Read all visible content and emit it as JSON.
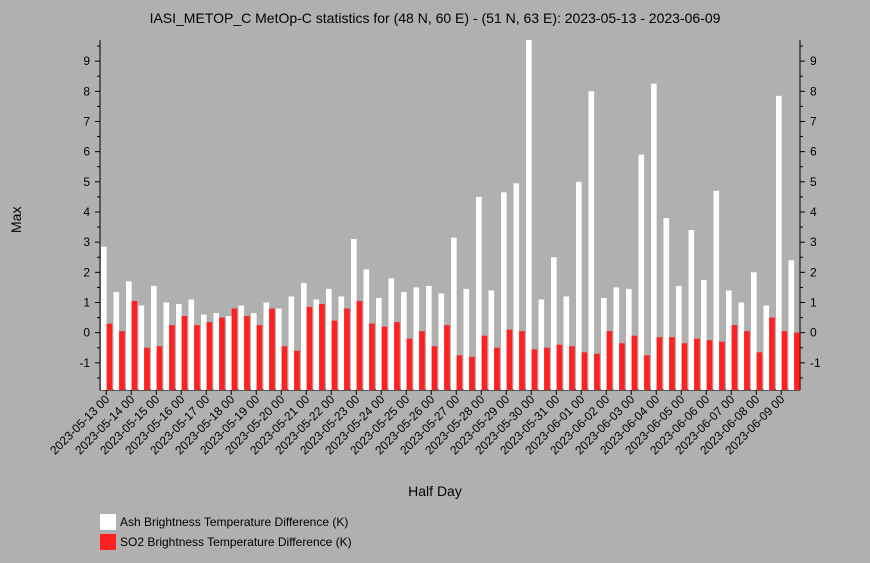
{
  "chart_data": {
    "type": "bar",
    "title": "IASI_METOP_C MetOp-C statistics for (48 N, 60 E) - (51 N, 63 E): 2023-05-13 - 2023-06-09",
    "xlabel": "Half Day",
    "ylabel": "Max",
    "ylim": [
      -1.9,
      9.7
    ],
    "yticks": [
      -1,
      0,
      1,
      2,
      3,
      4,
      5,
      6,
      7,
      8,
      9
    ],
    "x_tick_labels": [
      "2023-05-13 00",
      "2023-05-14 00",
      "2023-05-15 00",
      "2023-05-16 00",
      "2023-05-17 00",
      "2023-05-18 00",
      "2023-05-19 00",
      "2023-05-20 00",
      "2023-05-21 00",
      "2023-05-22 00",
      "2023-05-23 00",
      "2023-05-24 00",
      "2023-05-25 00",
      "2023-05-26 00",
      "2023-05-27 00",
      "2023-05-28 00",
      "2023-05-29 00",
      "2023-05-30 00",
      "2023-05-31 00",
      "2023-06-01 00",
      "2023-06-02 00",
      "2023-06-03 00",
      "2023-06-04 00",
      "2023-06-05 00",
      "2023-06-06 00",
      "2023-06-07 00",
      "2023-06-08 00",
      "2023-06-09 00"
    ],
    "legend_placement": "bottom-left",
    "series": [
      {
        "name": "Ash Brightness Temperature Difference (K)",
        "color": "#ffffff",
        "values": [
          2.85,
          1.35,
          1.7,
          0.9,
          1.55,
          1.0,
          0.95,
          1.1,
          0.6,
          0.65,
          0.55,
          0.9,
          0.65,
          1.0,
          0.8,
          1.2,
          1.65,
          1.1,
          1.45,
          1.2,
          3.1,
          2.1,
          1.15,
          1.8,
          1.35,
          1.5,
          1.55,
          1.3,
          3.15,
          1.45,
          4.5,
          1.4,
          4.65,
          4.95,
          9.7,
          1.1,
          2.5,
          1.2,
          5.0,
          8.0,
          1.15,
          1.5,
          1.45,
          5.9,
          8.25,
          3.8,
          1.55,
          3.4,
          1.75,
          4.7,
          1.4,
          1.0,
          2.0,
          0.9,
          7.85,
          2.4
        ]
      },
      {
        "name": "SO2 Brightness Temperature Difference (K)",
        "color": "#ff2020",
        "values": [
          0.3,
          0.05,
          1.05,
          -0.5,
          -0.45,
          0.25,
          0.55,
          0.25,
          0.35,
          0.5,
          0.8,
          0.55,
          0.25,
          0.8,
          -0.45,
          -0.6,
          0.85,
          0.95,
          0.4,
          0.8,
          1.05,
          0.3,
          0.2,
          0.35,
          -0.2,
          0.05,
          -0.45,
          0.25,
          -0.75,
          -0.8,
          -0.1,
          -0.5,
          0.1,
          0.05,
          -0.55,
          -0.5,
          -0.4,
          -0.45,
          -0.65,
          -0.7,
          0.05,
          -0.35,
          -0.1,
          -0.75,
          -0.15,
          -0.15,
          -0.35,
          -0.2,
          -0.25,
          -0.3,
          0.25,
          0.05,
          -0.65,
          0.5,
          0.05,
          0.0
        ]
      }
    ]
  }
}
